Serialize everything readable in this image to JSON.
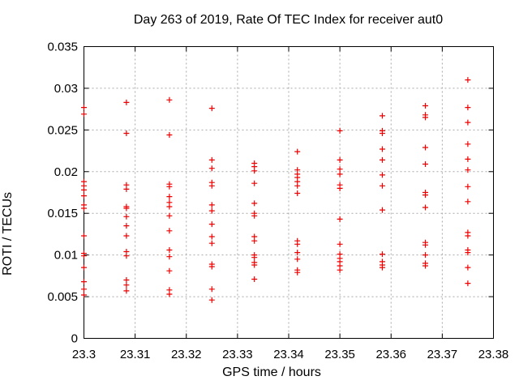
{
  "chart": {
    "title": "Day 263 of 2019, Rate Of TEC Index for receiver aut0",
    "xlabel": "GPS time / hours",
    "ylabel": "ROTI / TECUs"
  },
  "chart_data": {
    "type": "scatter",
    "title": "Day 263 of 2019, Rate Of TEC Index for receiver aut0",
    "xlabel": "GPS time / hours",
    "ylabel": "ROTI / TECUs",
    "xlim": [
      23.3,
      23.38
    ],
    "ylim": [
      0,
      0.035
    ],
    "xticks": [
      23.3,
      23.31,
      23.32,
      23.33,
      23.34,
      23.35,
      23.36,
      23.37,
      23.38
    ],
    "xtick_labels": [
      "23.3",
      "23.31",
      "23.32",
      "23.33",
      "23.34",
      "23.35",
      "23.36",
      "23.37",
      "23.38"
    ],
    "yticks": [
      0,
      0.005,
      0.01,
      0.015,
      0.02,
      0.025,
      0.03,
      0.035
    ],
    "ytick_labels": [
      "0",
      "0.005",
      "0.01",
      "0.015",
      "0.02",
      "0.025",
      "0.03",
      "0.035"
    ],
    "grid": true,
    "grid_color": "#a8a8a8",
    "legend": "none",
    "marker": {
      "symbol": "plus",
      "color": "#ee0000",
      "size": 7
    },
    "columns": [
      {
        "x": 23.3,
        "y": [
          0.0277,
          0.0269,
          0.0188,
          0.0183,
          0.0178,
          0.0171,
          0.016,
          0.0156,
          0.0123,
          0.0102,
          0.0099,
          0.0085,
          0.0068,
          0.0059,
          0.0052
        ]
      },
      {
        "x": 23.3083,
        "y": [
          0.0283,
          0.0246,
          0.0184,
          0.0179,
          0.0158,
          0.0156,
          0.0146,
          0.0135,
          0.0123,
          0.0104,
          0.0099,
          0.007,
          0.0064,
          0.0057
        ]
      },
      {
        "x": 23.3167,
        "y": [
          0.0286,
          0.0244,
          0.0185,
          0.0182,
          0.017,
          0.0163,
          0.0158,
          0.0147,
          0.0129,
          0.0106,
          0.0098,
          0.0081,
          0.0058,
          0.0053
        ]
      },
      {
        "x": 23.325,
        "y": [
          0.0276,
          0.0214,
          0.0204,
          0.0187,
          0.0183,
          0.016,
          0.0153,
          0.0137,
          0.0122,
          0.0114,
          0.0089,
          0.0086,
          0.0059,
          0.0046
        ]
      },
      {
        "x": 23.3333,
        "y": [
          0.021,
          0.0206,
          0.0201,
          0.0186,
          0.0162,
          0.015,
          0.0147,
          0.0122,
          0.0117,
          0.01,
          0.0097,
          0.0091,
          0.0088,
          0.0071
        ]
      },
      {
        "x": 23.3417,
        "y": [
          0.0224,
          0.0202,
          0.0197,
          0.0193,
          0.0188,
          0.0183,
          0.0174,
          0.0117,
          0.0113,
          0.0103,
          0.0095,
          0.0082,
          0.0079
        ]
      },
      {
        "x": 23.35,
        "y": [
          0.0249,
          0.0214,
          0.0203,
          0.0197,
          0.0184,
          0.018,
          0.0143,
          0.0113,
          0.0101,
          0.0096,
          0.0092,
          0.0087,
          0.0082
        ]
      },
      {
        "x": 23.3583,
        "y": [
          0.0267,
          0.0249,
          0.0246,
          0.0227,
          0.0214,
          0.0196,
          0.0183,
          0.0154,
          0.0101,
          0.0092,
          0.0088,
          0.0085
        ]
      },
      {
        "x": 23.3667,
        "y": [
          0.0279,
          0.0268,
          0.0265,
          0.0229,
          0.0209,
          0.0175,
          0.0172,
          0.0157,
          0.0115,
          0.0112,
          0.01,
          0.009,
          0.0087
        ]
      },
      {
        "x": 23.375,
        "y": [
          0.031,
          0.0277,
          0.0259,
          0.0233,
          0.0215,
          0.0202,
          0.0182,
          0.0164,
          0.0127,
          0.0123,
          0.0106,
          0.0103,
          0.0085,
          0.0066
        ]
      }
    ]
  }
}
